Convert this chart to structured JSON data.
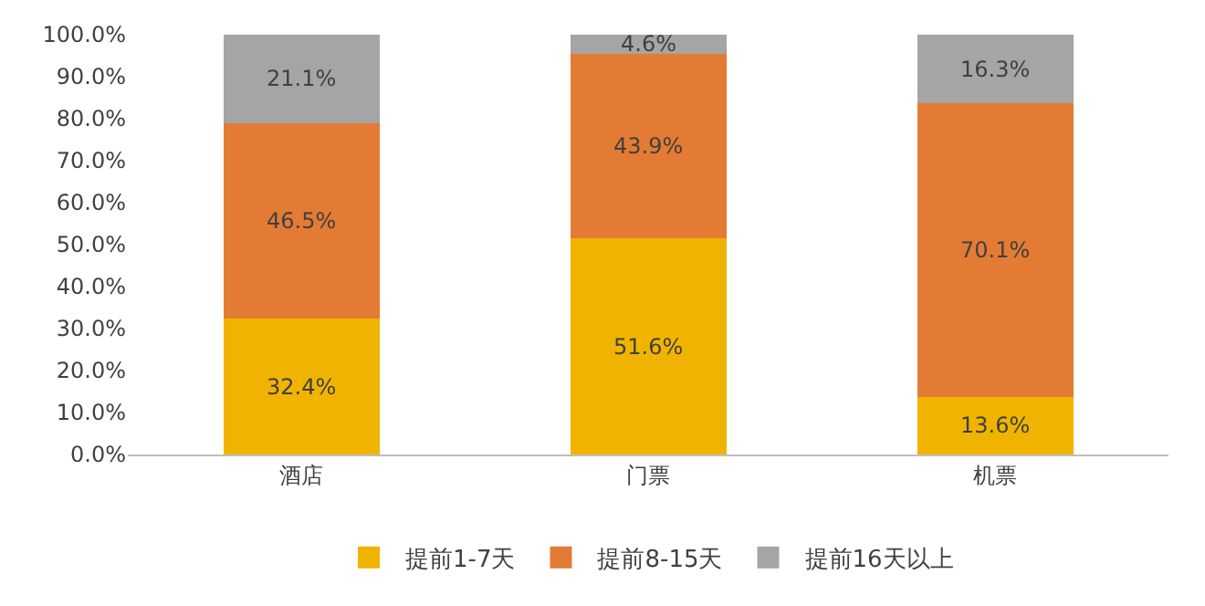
{
  "chart_data": {
    "type": "bar",
    "stacked": true,
    "categories": [
      "酒店",
      "门票",
      "机票"
    ],
    "series": [
      {
        "name": "提前1-7天",
        "color": "#f0b400",
        "values": [
          32.4,
          51.6,
          13.6
        ],
        "value_labels": [
          "32.4%",
          "51.6%",
          "13.6%"
        ]
      },
      {
        "name": "提前8-15天",
        "color": "#e47b34",
        "values": [
          46.5,
          43.9,
          70.1
        ],
        "value_labels": [
          "46.5%",
          "43.9%",
          "70.1%"
        ]
      },
      {
        "name": "提前16天以上",
        "color": "#a5a5a5",
        "values": [
          21.1,
          4.6,
          16.3
        ],
        "value_labels": [
          "21.1%",
          "4.6%",
          "16.3%"
        ]
      }
    ],
    "ylim": [
      0,
      100
    ],
    "yticks": [
      {
        "value": 0,
        "label": "0.0%"
      },
      {
        "value": 10,
        "label": "10.0%"
      },
      {
        "value": 20,
        "label": "20.0%"
      },
      {
        "value": 30,
        "label": "30.0%"
      },
      {
        "value": 40,
        "label": "40.0%"
      },
      {
        "value": 50,
        "label": "50.0%"
      },
      {
        "value": 60,
        "label": "60.0%"
      },
      {
        "value": 70,
        "label": "70.0%"
      },
      {
        "value": 80,
        "label": "80.0%"
      },
      {
        "value": 90,
        "label": "90.0%"
      },
      {
        "value": 100,
        "label": "100.0%"
      }
    ],
    "legend": "bottom"
  }
}
